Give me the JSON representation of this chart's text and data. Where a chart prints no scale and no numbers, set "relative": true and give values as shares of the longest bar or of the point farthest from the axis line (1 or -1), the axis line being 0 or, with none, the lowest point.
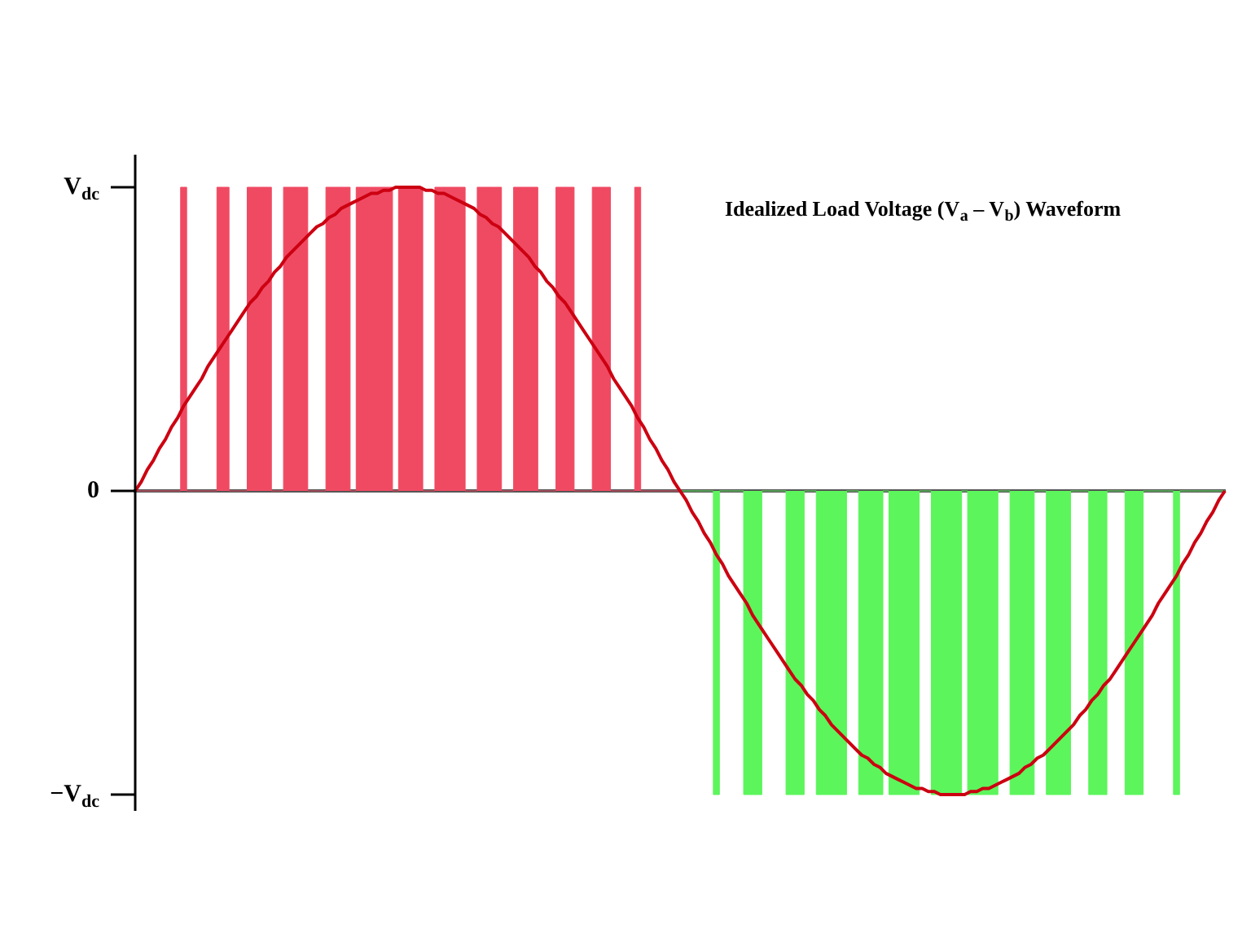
{
  "chart_data": {
    "type": "area",
    "title": "Idealized Load Voltage (V$_{a}$ – V$_{b}$) Waveform",
    "relative": true,
    "ref_lines": [
      {
        "axis": "y",
        "value": 1,
        "label": "V$_{dc}$"
      },
      {
        "axis": "y",
        "value": 0,
        "label": "0"
      },
      {
        "axis": "y",
        "value": -1,
        "label": "−V$_{dc}$"
      }
    ],
    "tick_labels": "y",
    "grid": false,
    "legend": false,
    "categories": [
      null,
      null,
      null,
      null,
      null,
      null,
      null,
      null,
      null,
      null,
      null,
      null,
      null,
      null,
      null,
      null,
      null,
      null,
      null,
      null,
      null,
      null,
      null,
      null,
      null,
      null,
      null,
      null,
      null,
      null,
      null,
      null,
      null,
      null,
      null,
      null,
      null,
      null,
      null,
      null,
      null,
      null,
      null,
      null,
      null,
      null,
      null,
      null,
      null,
      null,
      null,
      null,
      null,
      null,
      null,
      null,
      null,
      null,
      null,
      null,
      null,
      null,
      null,
      null,
      null,
      null,
      null,
      null,
      null,
      null,
      null,
      null,
      null,
      null,
      null,
      null,
      null,
      null,
      null,
      null,
      null,
      null,
      null,
      null,
      null,
      null,
      null,
      null,
      null,
      null,
      null,
      null,
      null,
      null,
      null,
      null,
      null,
      null,
      null,
      null,
      null,
      null,
      null,
      null,
      null,
      null,
      null,
      null,
      null,
      null,
      null,
      null,
      null,
      null,
      null,
      null,
      null,
      null,
      null,
      null,
      null,
      null,
      null,
      null,
      null,
      null,
      null,
      null,
      null,
      null,
      null,
      null,
      null,
      null,
      null,
      null,
      null,
      null,
      null,
      null,
      null,
      null,
      null,
      null,
      null,
      null,
      null,
      null,
      null,
      null,
      null,
      null,
      null,
      null,
      null,
      null,
      null,
      null,
      null,
      null,
      null,
      null,
      null,
      null,
      null,
      null,
      null,
      null,
      null,
      null,
      null,
      null,
      null,
      null,
      null,
      null,
      null,
      null,
      null,
      null,
      null
    ],
    "series": [
      {
        "color": "#f04a63",
        "values": [
          0,
          0,
          0,
          0,
          0,
          0,
          0,
          0,
          1,
          0,
          0,
          0,
          0,
          0,
          1,
          1,
          0,
          0,
          0,
          1,
          1,
          1,
          1,
          0,
          0,
          1,
          1,
          1,
          1,
          0,
          0,
          0,
          1,
          1,
          1,
          1,
          0,
          1,
          1,
          1,
          1,
          1,
          1,
          0,
          1,
          1,
          1,
          1,
          0,
          0,
          1,
          1,
          1,
          1,
          1,
          0,
          0,
          1,
          1,
          1,
          1,
          0,
          0,
          1,
          1,
          1,
          1,
          0,
          0,
          0,
          1,
          1,
          1,
          0,
          0,
          0,
          1,
          1,
          1,
          0,
          0,
          0,
          0,
          1,
          0,
          0,
          0,
          0,
          0,
          0,
          0,
          null,
          null,
          null,
          null,
          null,
          null,
          null,
          null,
          null,
          null,
          null,
          null,
          null,
          null,
          null,
          null,
          null,
          null,
          null,
          null,
          null,
          null,
          null,
          null,
          null,
          null,
          null,
          null,
          null,
          null,
          null,
          null,
          null,
          null,
          null,
          null,
          null,
          null,
          null,
          null,
          null,
          null,
          null,
          null,
          null,
          null,
          null,
          null,
          null,
          null,
          null,
          null,
          null,
          null,
          null,
          null,
          null,
          null,
          null,
          null,
          null,
          null,
          null,
          null,
          null,
          null,
          null,
          null,
          null,
          null,
          null,
          null,
          null,
          null,
          null,
          null,
          null,
          null,
          null,
          null,
          null,
          null,
          null,
          null,
          null,
          null,
          null,
          null,
          null,
          null
        ]
      },
      {
        "color": "#5cf55c",
        "values": [
          null,
          null,
          null,
          null,
          null,
          null,
          null,
          null,
          null,
          null,
          null,
          null,
          null,
          null,
          null,
          null,
          null,
          null,
          null,
          null,
          null,
          null,
          null,
          null,
          null,
          null,
          null,
          null,
          null,
          null,
          null,
          null,
          null,
          null,
          null,
          null,
          null,
          null,
          null,
          null,
          null,
          null,
          null,
          null,
          null,
          null,
          null,
          null,
          null,
          null,
          null,
          null,
          null,
          null,
          null,
          null,
          null,
          null,
          null,
          null,
          null,
          null,
          null,
          null,
          null,
          null,
          null,
          null,
          null,
          null,
          null,
          null,
          null,
          null,
          null,
          null,
          null,
          null,
          null,
          null,
          null,
          null,
          null,
          null,
          null,
          null,
          null,
          null,
          null,
          null,
          0,
          0,
          0,
          0,
          0,
          0,
          -1,
          0,
          0,
          0,
          0,
          -1,
          -1,
          -1,
          0,
          0,
          0,
          0,
          -1,
          -1,
          -1,
          0,
          0,
          -1,
          -1,
          -1,
          -1,
          -1,
          0,
          0,
          -1,
          -1,
          -1,
          -1,
          0,
          -1,
          -1,
          -1,
          -1,
          -1,
          0,
          0,
          -1,
          -1,
          -1,
          -1,
          -1,
          0,
          -1,
          -1,
          -1,
          -1,
          -1,
          0,
          0,
          -1,
          -1,
          -1,
          -1,
          0,
          0,
          -1,
          -1,
          -1,
          -1,
          0,
          0,
          0,
          -1,
          -1,
          -1,
          0,
          0,
          0,
          -1,
          -1,
          -1,
          0,
          0,
          0,
          0,
          0,
          -1,
          0,
          0,
          0,
          0,
          0,
          0,
          0,
          0
        ]
      },
      {
        "type": "line",
        "color": "#cc0011",
        "values": [
          0,
          0.03,
          0.07,
          0.1,
          0.14,
          0.17,
          0.21,
          0.24,
          0.28,
          0.31,
          0.34,
          0.37,
          0.41,
          0.44,
          0.47,
          0.5,
          0.53,
          0.56,
          0.59,
          0.62,
          0.64,
          0.67,
          0.69,
          0.72,
          0.74,
          0.77,
          0.79,
          0.81,
          0.83,
          0.85,
          0.87,
          0.88,
          0.9,
          0.91,
          0.93,
          0.94,
          0.95,
          0.96,
          0.97,
          0.98,
          0.98,
          0.99,
          0.99,
          1,
          1,
          1,
          1,
          1,
          0.99,
          0.99,
          0.98,
          0.98,
          0.97,
          0.96,
          0.95,
          0.94,
          0.93,
          0.91,
          0.9,
          0.88,
          0.87,
          0.85,
          0.83,
          0.81,
          0.79,
          0.77,
          0.74,
          0.72,
          0.69,
          0.67,
          0.64,
          0.62,
          0.59,
          0.56,
          0.53,
          0.5,
          0.47,
          0.44,
          0.41,
          0.37,
          0.34,
          0.31,
          0.28,
          0.24,
          0.21,
          0.17,
          0.14,
          0.1,
          0.07,
          0.03,
          0,
          -0.03,
          -0.07,
          -0.1,
          -0.14,
          -0.17,
          -0.21,
          -0.24,
          -0.28,
          -0.31,
          -0.34,
          -0.37,
          -0.41,
          -0.44,
          -0.47,
          -0.5,
          -0.53,
          -0.56,
          -0.59,
          -0.62,
          -0.64,
          -0.67,
          -0.69,
          -0.72,
          -0.74,
          -0.77,
          -0.79,
          -0.81,
          -0.83,
          -0.85,
          -0.87,
          -0.88,
          -0.9,
          -0.91,
          -0.93,
          -0.94,
          -0.95,
          -0.96,
          -0.97,
          -0.98,
          -0.98,
          -0.99,
          -0.99,
          -1,
          -1,
          -1,
          -1,
          -1,
          -0.99,
          -0.99,
          -0.98,
          -0.98,
          -0.97,
          -0.96,
          -0.95,
          -0.94,
          -0.93,
          -0.91,
          -0.9,
          -0.88,
          -0.87,
          -0.85,
          -0.83,
          -0.81,
          -0.79,
          -0.77,
          -0.74,
          -0.72,
          -0.69,
          -0.67,
          -0.64,
          -0.62,
          -0.59,
          -0.56,
          -0.53,
          -0.5,
          -0.47,
          -0.44,
          -0.41,
          -0.37,
          -0.34,
          -0.31,
          -0.28,
          -0.24,
          -0.21,
          -0.17,
          -0.14,
          -0.1,
          -0.07,
          -0.03,
          0
        ]
      }
    ]
  }
}
